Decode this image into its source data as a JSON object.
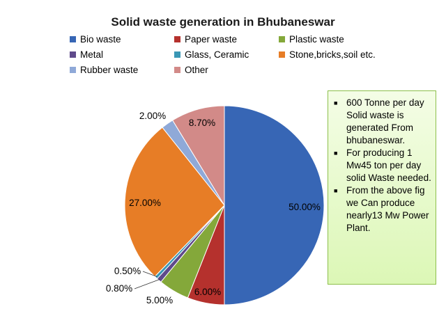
{
  "chart_data": {
    "type": "pie",
    "title": "Solid waste generation in Bhubaneswar",
    "legend_position": "top",
    "slices": [
      {
        "name": "Bio waste",
        "value": 50.0,
        "label": "50.00%",
        "color": "#3766b5"
      },
      {
        "name": "Paper waste",
        "value": 6.0,
        "label": "6.00%",
        "color": "#b5312d"
      },
      {
        "name": "Plastic waste",
        "value": 5.0,
        "label": "5.00%",
        "color": "#84a83a"
      },
      {
        "name": "Metal",
        "value": 0.8,
        "label": "0.80%",
        "color": "#5f4a8b"
      },
      {
        "name": "Glass, Ceramic",
        "value": 0.5,
        "label": "0.50%",
        "color": "#3a97b5"
      },
      {
        "name": "Stone,bricks,soil etc.",
        "value": 27.0,
        "label": "27.00%",
        "color": "#e77d26"
      },
      {
        "name": "Rubber waste",
        "value": 2.0,
        "label": "2.00%",
        "color": "#8fa9d8"
      },
      {
        "name": "Other",
        "value": 8.7,
        "label": "8.70%",
        "color": "#d28a88"
      }
    ]
  },
  "legend_order": [
    0,
    1,
    2,
    3,
    4,
    5,
    6,
    7
  ],
  "note": {
    "items": [
      "600 Tonne per day Solid waste is generated From bhubaneswar.",
      "For producing 1 Mw45 ton per day solid Waste needed.",
      "From the above fig we Can produce nearly13 Mw Power Plant."
    ]
  }
}
